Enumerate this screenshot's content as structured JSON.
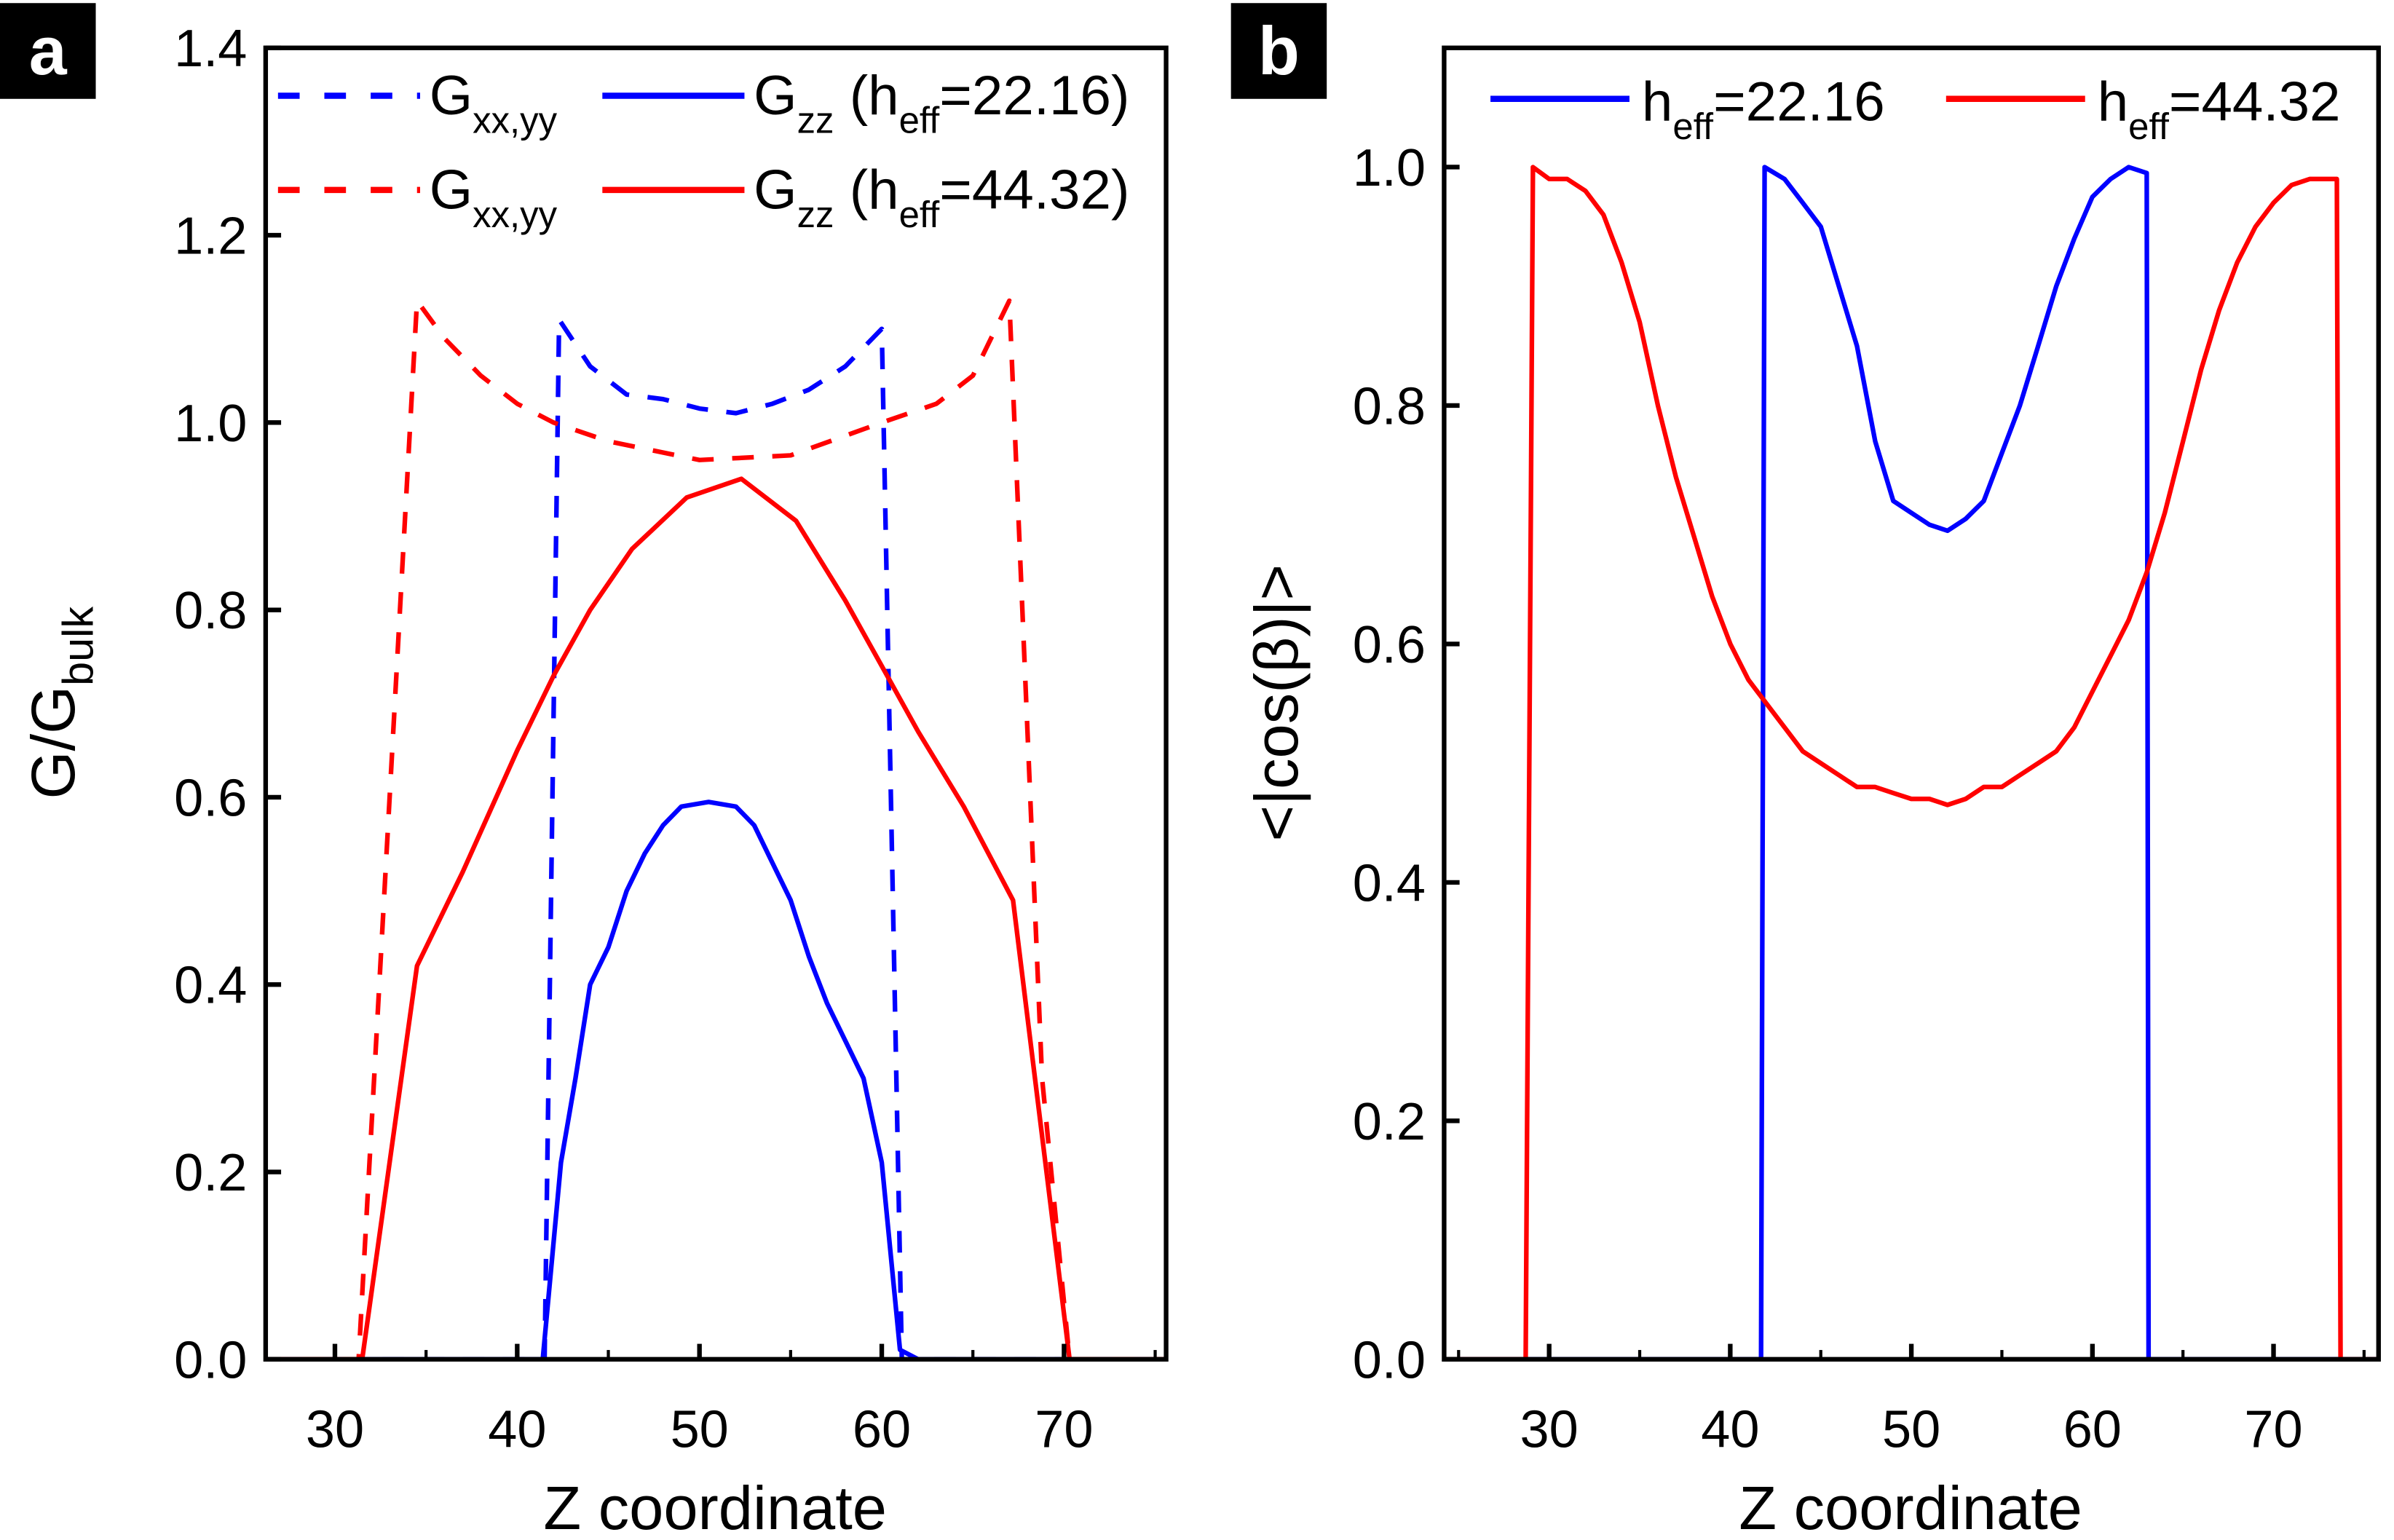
{
  "chart_data": [
    {
      "panel_label": "a",
      "type": "line",
      "xlabel": "Z coordinate",
      "ylabel": {
        "main": "G/G",
        "sub": "bulk"
      },
      "xlim": [
        26.2,
        75.6
      ],
      "ylim": [
        0,
        1.4
      ],
      "xticks": [
        30,
        40,
        50,
        60,
        70
      ],
      "yticks": [
        0.0,
        0.2,
        0.4,
        0.6,
        0.8,
        1.0,
        1.2,
        1.4
      ],
      "legend_position": "top",
      "series": [
        {
          "name": "Gxx,yy (heff=22.16)",
          "legend": {
            "main": "G",
            "sub": "xx,yy"
          },
          "color": "#0000ff",
          "dash": true,
          "x": [
            26,
            41.5,
            42.3,
            44,
            46,
            48,
            50,
            52,
            54,
            56,
            58,
            60,
            61.1,
            76
          ],
          "y": [
            0,
            0,
            1.11,
            1.06,
            1.03,
            1.025,
            1.015,
            1.01,
            1.02,
            1.035,
            1.06,
            1.1,
            0,
            0
          ]
        },
        {
          "name": "Gzz (heff=22.16)",
          "legend": {
            "main": "G",
            "sub": "zz",
            "paren_open": " (h",
            "paren_sub": "eff",
            "value": "=22.16)"
          },
          "color": "#0000ff",
          "dash": false,
          "x": [
            26,
            41.4,
            42.4,
            43.2,
            44,
            45,
            46,
            47,
            48,
            49,
            50.5,
            52,
            53,
            54,
            55,
            56,
            57,
            58,
            59,
            60,
            61,
            62,
            76
          ],
          "y": [
            0,
            0,
            0.21,
            0.3,
            0.4,
            0.44,
            0.5,
            0.54,
            0.57,
            0.59,
            0.595,
            0.59,
            0.57,
            0.53,
            0.49,
            0.43,
            0.38,
            0.34,
            0.3,
            0.21,
            0.01,
            0,
            0
          ]
        },
        {
          "name": "Gxx,yy (heff=44.32)",
          "legend": {
            "main": "G",
            "sub": "xx,yy"
          },
          "color": "#ff0000",
          "dash": true,
          "x": [
            26,
            31.3,
            34.5,
            36,
            38,
            40,
            42,
            45,
            50,
            55,
            60,
            63,
            65,
            67,
            68.8,
            70.3,
            76
          ],
          "y": [
            0,
            0,
            1.13,
            1.09,
            1.05,
            1.02,
            1.0,
            0.98,
            0.96,
            0.965,
            1.0,
            1.02,
            1.05,
            1.13,
            0.3,
            0,
            0
          ]
        },
        {
          "name": "Gzz (heff=44.32)",
          "legend": {
            "main": "G",
            "sub": "zz",
            "paren_open": " (h",
            "paren_sub": "eff",
            "value": "=44.32)"
          },
          "color": "#ff0000",
          "dash": false,
          "x": [
            26,
            31.5,
            34.5,
            37,
            40,
            42,
            44,
            46.3,
            49.3,
            52.3,
            55.3,
            58,
            60,
            62,
            64.5,
            67.2,
            70.3,
            76
          ],
          "y": [
            0,
            0,
            0.42,
            0.52,
            0.65,
            0.73,
            0.8,
            0.865,
            0.92,
            0.94,
            0.895,
            0.81,
            0.74,
            0.67,
            0.59,
            0.49,
            0,
            0
          ]
        }
      ]
    },
    {
      "panel_label": "b",
      "type": "line",
      "xlabel": "Z coordinate",
      "ylabel": "<|cos(β)|>",
      "xlim": [
        24.2,
        75.8
      ],
      "ylim": [
        0,
        1.1
      ],
      "xticks": [
        30,
        40,
        50,
        60,
        70
      ],
      "yticks": [
        0.0,
        0.2,
        0.4,
        0.6,
        0.8,
        1.0
      ],
      "legend_position": "top",
      "series": [
        {
          "name": "heff=22.16",
          "legend": {
            "main": "h",
            "sub": "eff",
            "value": "=22.16"
          },
          "color": "#0000ff",
          "dash": false,
          "x": [
            24,
            41.7,
            41.9,
            43,
            44,
            45,
            46,
            47,
            48,
            49,
            50,
            51,
            52,
            53,
            54,
            55,
            56,
            57,
            58,
            59,
            60,
            61,
            62,
            63,
            63.1,
            76
          ],
          "y": [
            0,
            0,
            1.0,
            0.99,
            0.97,
            0.95,
            0.9,
            0.85,
            0.77,
            0.72,
            0.71,
            0.7,
            0.695,
            0.705,
            0.72,
            0.76,
            0.8,
            0.85,
            0.9,
            0.94,
            0.975,
            0.99,
            1.0,
            0.995,
            0,
            0
          ]
        },
        {
          "name": "heff=44.32",
          "legend": {
            "main": "h",
            "sub": "eff",
            "value": "=44.32"
          },
          "color": "#ff0000",
          "dash": false,
          "x": [
            24,
            28.7,
            29.1,
            30,
            31,
            32,
            33,
            34,
            35,
            36,
            37,
            38,
            39,
            40,
            41,
            42,
            43,
            44,
            45,
            46,
            47,
            48,
            49,
            50,
            51,
            52,
            53,
            54,
            55,
            56,
            57,
            58,
            59,
            60,
            61,
            62,
            63,
            64,
            65,
            66,
            67,
            68,
            69,
            70,
            71,
            72,
            73.5,
            73.7,
            76
          ],
          "y": [
            0,
            0,
            1.0,
            0.99,
            0.99,
            0.98,
            0.96,
            0.92,
            0.87,
            0.8,
            0.74,
            0.69,
            0.64,
            0.6,
            0.57,
            0.55,
            0.53,
            0.51,
            0.5,
            0.49,
            0.48,
            0.48,
            0.475,
            0.47,
            0.47,
            0.465,
            0.47,
            0.48,
            0.48,
            0.49,
            0.5,
            0.51,
            0.53,
            0.56,
            0.59,
            0.62,
            0.66,
            0.71,
            0.77,
            0.83,
            0.88,
            0.92,
            0.95,
            0.97,
            0.985,
            0.99,
            0.99,
            0,
            0
          ]
        }
      ]
    }
  ]
}
